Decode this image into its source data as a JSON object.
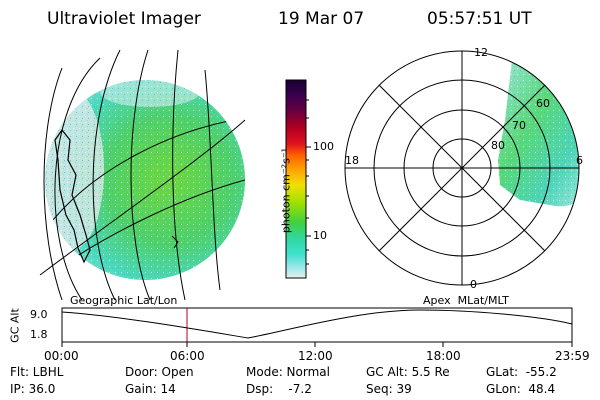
{
  "header": {
    "instrument": "Ultraviolet Imager",
    "date": "19 Mar 07",
    "time": "05:57:51 UT"
  },
  "colorbar": {
    "unit_label": "photon cm⁻²s⁻¹",
    "tick_labels": [
      "100",
      "10"
    ],
    "scale": "log",
    "colors": [
      "#1a0030",
      "#3a0050",
      "#6a0040",
      "#b00020",
      "#e01020",
      "#ff6000",
      "#ffa000",
      "#f0e000",
      "#a0e000",
      "#40d040",
      "#30d8a0",
      "#40e0d0",
      "#a0e8e8",
      "#e8f0f0"
    ]
  },
  "polar_plot": {
    "rings": [
      "80",
      "70",
      "60"
    ],
    "hour_labels": {
      "top": "12",
      "left": "18",
      "right": "6",
      "bottom": "0"
    }
  },
  "labels": {
    "geo_coord": "Geographic Lat/Lon",
    "apex_coord": "Apex  MLat/MLT"
  },
  "altitude_strip": {
    "ylabel": "GC Alt",
    "y_top": "9.0",
    "y_bottom": "1.8",
    "x_ticks": [
      "00:00",
      "06:00",
      "12:00",
      "18:00",
      "23:59"
    ]
  },
  "info": {
    "flt": "Flt: LBHL",
    "ip": "IP: 36.0",
    "door": "Door: Open",
    "gain": "Gain: 14",
    "mode": "Mode: Normal",
    "dsp": "Dsp:    -7.2",
    "gc_alt": "GC Alt: 5.5 Re",
    "seq": "Seq: 39",
    "glat": "GLat:  -55.2",
    "glon": "GLon:  48.4"
  }
}
